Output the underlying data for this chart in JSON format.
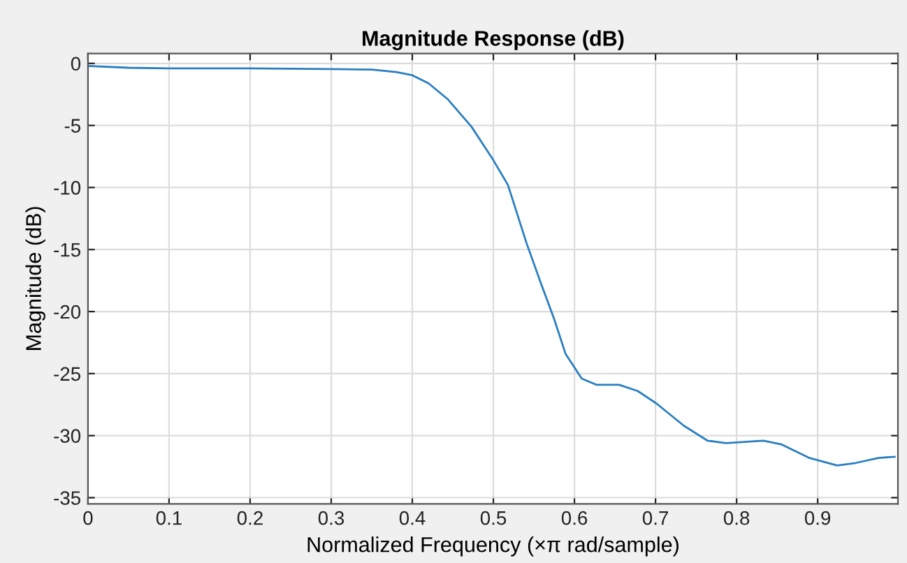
{
  "chart_data": {
    "type": "line",
    "title": "Magnitude Response (dB)",
    "xlabel": "Normalized Frequency (×π rad/sample)",
    "ylabel": "Magnitude (dB)",
    "grid": true,
    "xlim": [
      0,
      0.999
    ],
    "ylim": [
      -35.5,
      0.8
    ],
    "xticks": [
      0,
      0.1,
      0.2,
      0.3,
      0.4,
      0.5,
      0.6,
      0.7,
      0.8,
      0.9
    ],
    "yticks": [
      -35,
      -30,
      -25,
      -20,
      -15,
      -10,
      -5,
      0
    ],
    "series": [
      {
        "color": "#2a7fc0",
        "x": [
          0,
          0.05,
          0.1,
          0.2,
          0.3,
          0.35,
          0.38,
          0.4,
          0.42,
          0.444,
          0.473,
          0.5,
          0.518,
          0.541,
          0.558,
          0.575,
          0.589,
          0.609,
          0.627,
          0.655,
          0.678,
          0.701,
          0.735,
          0.764,
          0.787,
          0.833,
          0.855,
          0.89,
          0.924,
          0.947,
          0.975,
          0.995
        ],
        "values": [
          -0.2,
          -0.35,
          -0.4,
          -0.4,
          -0.45,
          -0.5,
          -0.7,
          -0.95,
          -1.6,
          -2.9,
          -5.1,
          -7.8,
          -9.8,
          -14.5,
          -17.6,
          -20.6,
          -23.4,
          -25.4,
          -25.9,
          -25.9,
          -26.4,
          -27.4,
          -29.2,
          -30.4,
          -30.6,
          -30.4,
          -30.7,
          -31.8,
          -32.4,
          -32.2,
          -31.8,
          -31.7
        ]
      }
    ]
  }
}
